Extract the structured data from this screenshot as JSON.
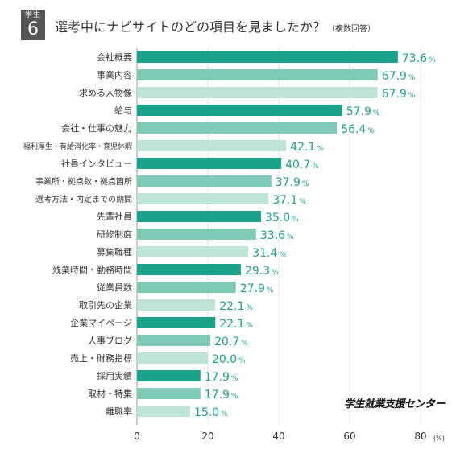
{
  "badge": {
    "label": "学生",
    "number": "6"
  },
  "title": {
    "main": "選考中にナビサイトのどの項目を見ましたか？",
    "sub": "（複数回答）"
  },
  "credit": "学生就業支援センター",
  "colors": {
    "teal_dark": "#1aa38a",
    "teal_mid": "#7fcab4",
    "teal_light": "#bde4d6",
    "value_text": "#1aa38a",
    "axis_text": "#333333",
    "label_text": "#333333"
  },
  "chart_data": {
    "type": "bar",
    "orientation": "horizontal",
    "categories": [
      "会社概要",
      "事業内容",
      "求める人物像",
      "給与",
      "会社・仕事の魅力",
      "福利厚生・有給消化率・育児休暇",
      "社員インタビュー",
      "事業所・拠点数・拠点箇所",
      "選考方法・内定までの期間",
      "先輩社員",
      "研修制度",
      "募集職種",
      "残業時間・勤務時間",
      "従業員数",
      "取引先の企業",
      "企業マイページ",
      "人事ブログ",
      "売上・財務指標",
      "採用実績",
      "取材・特集",
      "離職率"
    ],
    "values": [
      73.6,
      67.9,
      67.9,
      57.9,
      56.4,
      42.1,
      40.7,
      37.9,
      37.1,
      35.0,
      33.6,
      31.4,
      29.3,
      27.9,
      22.1,
      22.1,
      20.7,
      20.0,
      17.9,
      17.9,
      15.0
    ],
    "value_labels": [
      "73.6",
      "67.9",
      "67.9",
      "57.9",
      "56.4",
      "42.1",
      "40.7",
      "37.9",
      "37.1",
      "35.0",
      "33.6",
      "31.4",
      "29.3",
      "27.9",
      "22.1",
      "22.1",
      "20.7",
      "20.0",
      "17.9",
      "17.9",
      "15.0"
    ],
    "value_suffix": "%",
    "color_cycle": [
      "teal_dark",
      "teal_mid",
      "teal_light"
    ],
    "xlim": [
      0,
      80
    ],
    "xticks": [
      0,
      20,
      40,
      60,
      80
    ],
    "xtick_labels": [
      "0",
      "20",
      "40",
      "60",
      "80"
    ],
    "xunit": "(%)",
    "grid": true
  }
}
